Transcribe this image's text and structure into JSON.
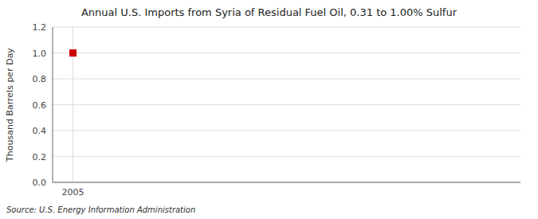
{
  "chart_data": {
    "type": "scatter",
    "title": "Annual U.S. Imports from Syria of Residual Fuel Oil, 0.31 to 1.00% Sulfur",
    "ylabel": "Thousand Barrels per Day",
    "source": "Source: U.S. Energy Information Administration",
    "x": [
      2005
    ],
    "values": [
      1.0
    ],
    "color": "#cc0000",
    "marker": "square",
    "xlim": [
      2004.5,
      2016.0
    ],
    "xticks": [
      2005
    ],
    "ylim": [
      0.0,
      1.2
    ],
    "yticks": [
      {
        "value": 0.0,
        "label": "0.0"
      },
      0.2,
      0.4,
      0.6,
      0.8,
      {
        "value": 1.0,
        "label": "1.0"
      },
      1.2
    ],
    "grid": true
  }
}
